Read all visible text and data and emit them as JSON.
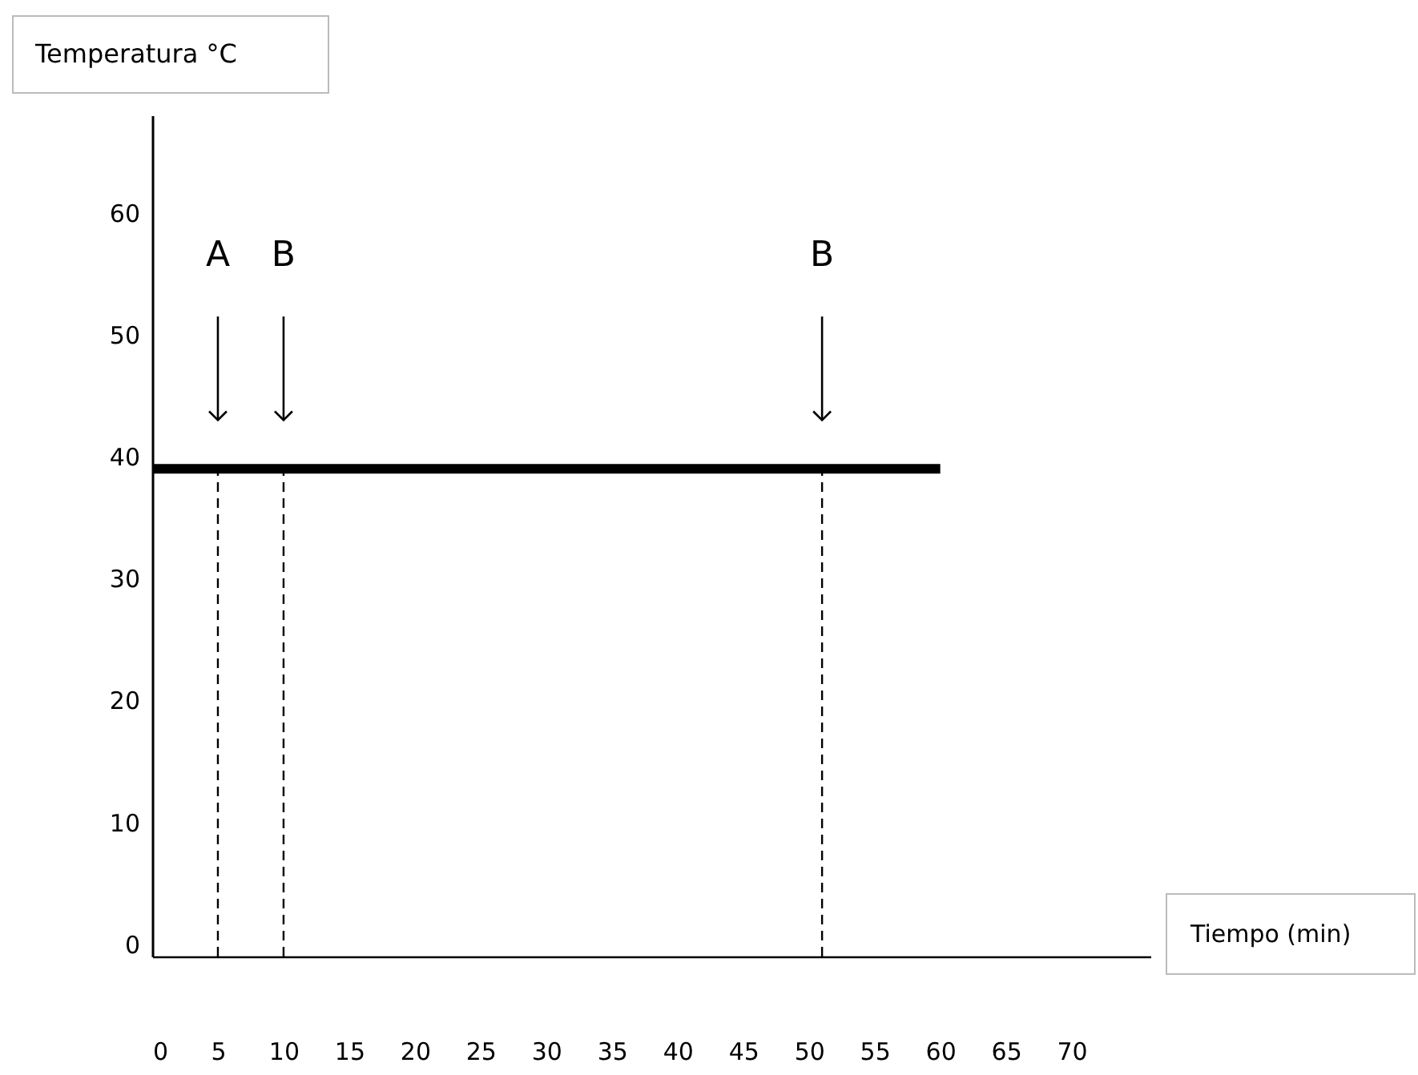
{
  "chart_data": {
    "type": "line",
    "ylabel": "Temperatura °C",
    "xlabel": "Tiempo (min)",
    "series": [
      {
        "x": [
          0,
          60
        ],
        "values": [
          39,
          39
        ],
        "color": "#000000"
      }
    ],
    "xlim": [
      0,
      76
    ],
    "ylim": [
      -1,
      68
    ],
    "xticks": [
      0,
      5,
      10,
      15,
      20,
      25,
      30,
      35,
      40,
      45,
      50,
      55,
      60,
      65,
      70
    ],
    "yticks": [
      0,
      10,
      20,
      30,
      40,
      50,
      60
    ],
    "grid": false,
    "marker": "none",
    "line_style": "solid",
    "ref_lines": [
      {
        "axis": "x",
        "value": 5,
        "line_style": "dashed",
        "color": "#000000"
      },
      {
        "axis": "x",
        "value": 10,
        "line_style": "dashed",
        "color": "#000000"
      },
      {
        "axis": "x",
        "value": 51,
        "line_style": "dashed",
        "color": "#000000"
      }
    ],
    "annotations": [
      "A",
      "B",
      "B"
    ]
  }
}
